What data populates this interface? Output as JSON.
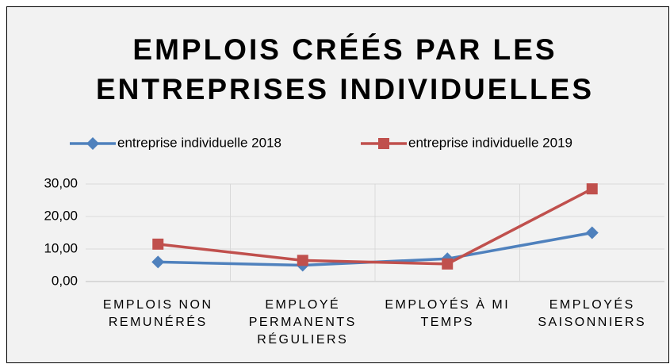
{
  "chart_data": {
    "type": "line",
    "title": "EMPLOIS CRÉÉS PAR LES ENTREPRISES INDIVIDUELLES",
    "categories": [
      "EMPLOIS NON REMUNÉRÉS",
      "EMPLOYÉ PERMANENTS RÉGULIERS",
      "EMPLOYÉS À MI TEMPS",
      "EMPLOYÉS SAISONNIERS"
    ],
    "series": [
      {
        "name": "entreprise individuelle 2018",
        "color": "#4f81bd",
        "marker": "diamond",
        "values": [
          6,
          5,
          7,
          15
        ]
      },
      {
        "name": "entreprise individuelle 2019",
        "color": "#c0504d",
        "marker": "square",
        "values": [
          11.5,
          6.5,
          5.4,
          28.5
        ]
      }
    ],
    "ylim": [
      0,
      30
    ],
    "yticks": [
      {
        "value": 0,
        "label": "0,00"
      },
      {
        "value": 10,
        "label": "10,00"
      },
      {
        "value": 20,
        "label": "20,00"
      },
      {
        "value": 30,
        "label": "30,00"
      }
    ],
    "grid": true,
    "legend": "top"
  }
}
